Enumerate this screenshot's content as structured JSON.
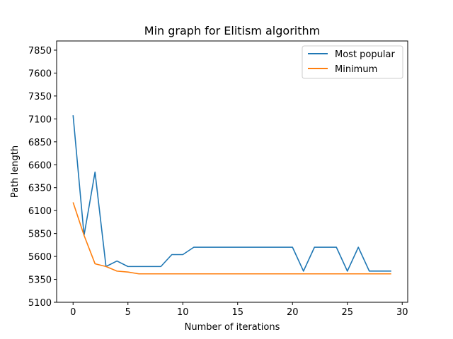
{
  "chart_data": {
    "type": "line",
    "title": "Min graph for Elitism algorithm",
    "xlabel": "Number of iterations",
    "ylabel": "Path length",
    "xlim": [
      -1.5,
      30.5
    ],
    "ylim": [
      5100,
      7950
    ],
    "xticks": [
      0,
      5,
      10,
      15,
      20,
      25,
      30
    ],
    "yticks": [
      5100,
      5350,
      5600,
      5850,
      6100,
      6350,
      6600,
      6850,
      7100,
      7350,
      7600,
      7850
    ],
    "grid": false,
    "legend_position": "top-right",
    "x": [
      0,
      1,
      2,
      3,
      4,
      5,
      6,
      7,
      8,
      9,
      10,
      11,
      12,
      13,
      14,
      15,
      16,
      17,
      18,
      19,
      20,
      21,
      22,
      23,
      24,
      25,
      26,
      27,
      28,
      29
    ],
    "series": [
      {
        "name": "Most popular",
        "color": "#1f77b4",
        "values": [
          7140,
          5830,
          6520,
          5490,
          5550,
          5490,
          5490,
          5490,
          5490,
          5620,
          5620,
          5700,
          5700,
          5700,
          5700,
          5700,
          5700,
          5700,
          5700,
          5700,
          5700,
          5440,
          5700,
          5700,
          5700,
          5440,
          5700,
          5440,
          5440,
          5440
        ]
      },
      {
        "name": "Minimum",
        "color": "#ff7f0e",
        "values": [
          6190,
          5830,
          5520,
          5490,
          5440,
          5430,
          5410,
          5410,
          5410,
          5410,
          5410,
          5410,
          5410,
          5410,
          5410,
          5410,
          5410,
          5410,
          5410,
          5410,
          5410,
          5410,
          5410,
          5410,
          5410,
          5410,
          5410,
          5410,
          5410,
          5410
        ]
      }
    ]
  }
}
